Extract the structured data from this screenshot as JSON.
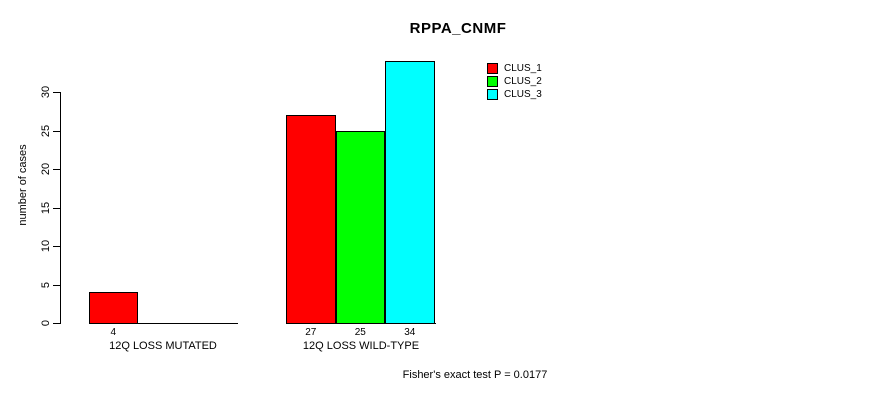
{
  "title": "RPPA_CNMF",
  "y_axis": {
    "label": "number of cases",
    "ticks": [
      0,
      5,
      10,
      15,
      20,
      25,
      30
    ]
  },
  "legend": {
    "items": [
      {
        "label": "CLUS_1",
        "color": "#ff0000"
      },
      {
        "label": "CLUS_2",
        "color": "#00ff00"
      },
      {
        "label": "CLUS_3",
        "color": "#00ffff"
      }
    ]
  },
  "footer": "Fisher's exact test P = 0.0177",
  "chart_data": {
    "type": "bar",
    "title": "RPPA_CNMF",
    "xlabel": "",
    "ylabel": "number of cases",
    "categories": [
      "12Q LOSS MUTATED",
      "12Q LOSS WILD-TYPE"
    ],
    "series": [
      {
        "name": "CLUS_1",
        "color": "#ff0000",
        "values": [
          4,
          27
        ]
      },
      {
        "name": "CLUS_2",
        "color": "#00ff00",
        "values": [
          0,
          25
        ]
      },
      {
        "name": "CLUS_3",
        "color": "#00ffff",
        "values": [
          0,
          34
        ]
      }
    ],
    "bar_value_labels": [
      [
        "4",
        "",
        ""
      ],
      [
        "27",
        "25",
        "34"
      ]
    ],
    "ylim": [
      0,
      34
    ],
    "yticks": [
      0,
      5,
      10,
      15,
      20,
      25,
      30
    ],
    "grid": false,
    "legend_position": "top-right",
    "legend_entries": [
      "CLUS_1",
      "CLUS_2",
      "CLUS_3"
    ],
    "annotation": "Fisher's exact test P = 0.0177"
  }
}
